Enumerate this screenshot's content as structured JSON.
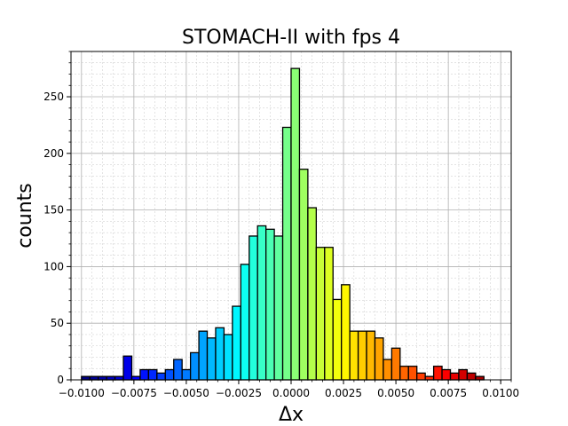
{
  "chart_data": {
    "type": "bar",
    "title": "STOMACH-II with fps 4",
    "xlabel": "Δx",
    "ylabel": "counts",
    "xlim": [
      -0.0105,
      0.0105
    ],
    "ylim": [
      0,
      290
    ],
    "grid": true,
    "colormap": "jet",
    "bin_width": 0.0004,
    "bin_start": -0.01,
    "x_ticks": [
      "−0.0100",
      "−0.0075",
      "−0.0050",
      "−0.0025",
      "0.0000",
      "0.0025",
      "0.0050",
      "0.0075",
      "0.0100"
    ],
    "x_tick_values": [
      -0.01,
      -0.0075,
      -0.005,
      -0.0025,
      0,
      0.0025,
      0.005,
      0.0075,
      0.01
    ],
    "y_ticks": [
      "0",
      "50",
      "100",
      "150",
      "200",
      "250"
    ],
    "y_tick_values": [
      0,
      50,
      100,
      150,
      200,
      250
    ],
    "values": [
      3,
      3,
      3,
      3,
      3,
      21,
      3,
      9,
      9,
      6,
      9,
      18,
      9,
      24,
      43,
      37,
      46,
      40,
      65,
      102,
      127,
      136,
      133,
      127,
      223,
      275,
      186,
      152,
      117,
      117,
      71,
      84,
      43,
      43,
      43,
      37,
      18,
      28,
      12,
      12,
      6,
      3,
      12,
      9,
      6,
      9,
      6,
      3,
      0,
      0
    ]
  }
}
